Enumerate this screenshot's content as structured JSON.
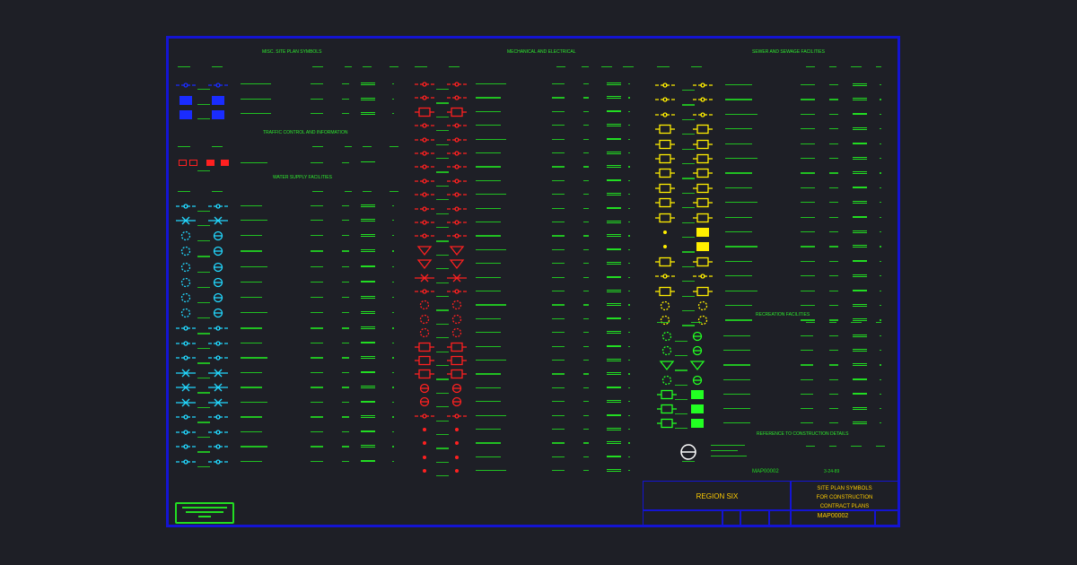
{
  "sections": {
    "misc": "MISC. SITE PLAN SYMBOLS",
    "mech": "MECHANICAL AND ELECTRICAL",
    "sewer": "SEWER AND SEWAGE FACILITIES",
    "traffic": "TRAFFIC CONTROL AND INFORMATION",
    "water": "WATER SUPPLY FACILITIES",
    "recreation": "RECREATION FACILITIES",
    "reference": "REFERENCE TO CONSTRUCTION DETAILS"
  },
  "title_block": {
    "sheet_no_top": "MAP00002",
    "date": "3-24-89",
    "region": "REGION SIX",
    "title_line1": "SITE PLAN SYMBOLS",
    "title_line2": "FOR CONSTRUCTION",
    "title_line3": "CONTRACT PLANS",
    "drawing_no": "MAP00002"
  },
  "colors": {
    "border": "#1414d2",
    "text_green": "#22dd22",
    "blue_symbol": "#1a2cff",
    "red_symbol": "#ff2020",
    "cyan_symbol": "#22d8ff",
    "yellow_symbol": "#ffee00",
    "green_symbol": "#22ff22",
    "white_symbol": "#ffffff"
  }
}
